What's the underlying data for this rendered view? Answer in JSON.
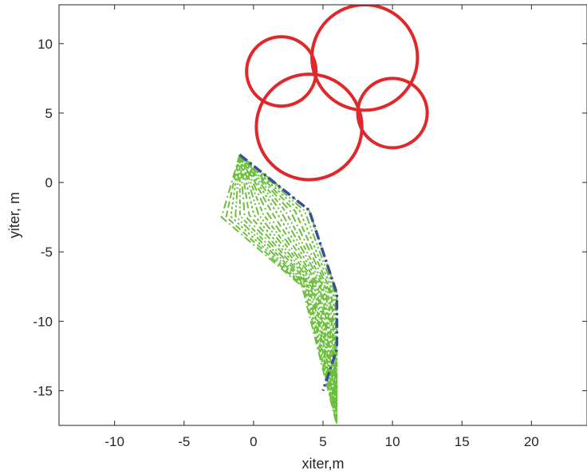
{
  "chart_data": {
    "type": "line",
    "title": "",
    "xlabel": "xiter,m",
    "ylabel": "yiter, m",
    "xlim": [
      -14,
      24
    ],
    "ylim": [
      -17.5,
      12.8
    ],
    "xticks": [
      -10,
      -5,
      0,
      5,
      10,
      15,
      20
    ],
    "yticks": [
      -15,
      -10,
      -5,
      0,
      5,
      10
    ],
    "grid": false,
    "box": true,
    "obstacles": [
      {
        "x": 2,
        "y": 8,
        "r": 2.5
      },
      {
        "x": 8,
        "y": 9,
        "r": 3.8
      },
      {
        "x": 4,
        "y": 4,
        "r": 3.8
      },
      {
        "x": 10,
        "y": 5,
        "r": 2.5
      }
    ],
    "final_path": {
      "x": [
        -1,
        4,
        6,
        6,
        5
      ],
      "y": [
        2,
        -2,
        -8,
        -12,
        -15
      ]
    },
    "iteration_paths": {
      "count": 20,
      "start": [
        -1,
        2
      ],
      "initial": {
        "x": [
          -1,
          -2.3,
          3.5,
          6
        ],
        "y": [
          2,
          -2.5,
          -7.5,
          -17.5
        ]
      },
      "final": {
        "x": [
          -1,
          4,
          6,
          6
        ],
        "y": [
          2,
          -2,
          -8,
          -15
        ]
      }
    },
    "colors": {
      "obstacle": "#e0282b",
      "final_path": "#3a4f9c",
      "iterations": "#6cbf3c",
      "axis": "#262626"
    }
  }
}
